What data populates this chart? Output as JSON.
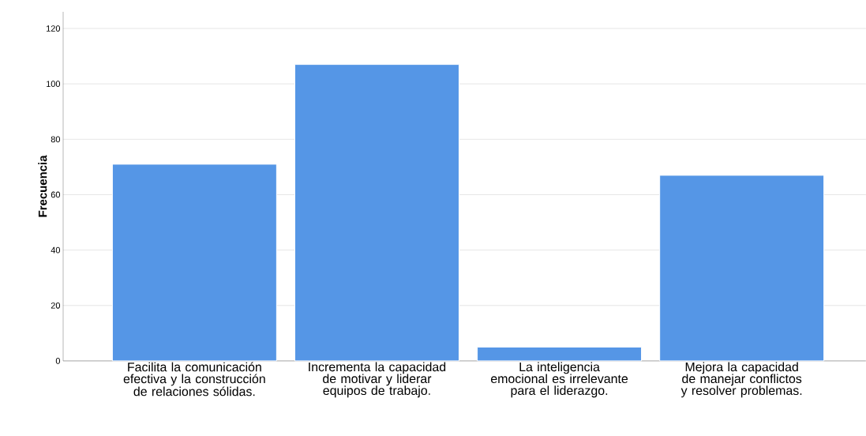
{
  "chart_data": {
    "type": "bar",
    "ylabel": "Frecuencia",
    "categories": [
      "Facilita la comunicación efectiva y la construcción de relaciones sólidas.",
      "Incrementa la capacidad de motivar y liderar equipos de trabajo.",
      "La inteligencia emocional es irrelevante para el liderazgo.",
      "Mejora la capacidad de manejar conflictos y resolver problemas."
    ],
    "values": [
      71,
      107,
      5,
      67
    ],
    "color": "#5596e6",
    "ylim": [
      0,
      126
    ],
    "yticks": [
      0,
      20,
      40,
      60,
      80,
      100,
      120
    ],
    "grid": "y"
  }
}
